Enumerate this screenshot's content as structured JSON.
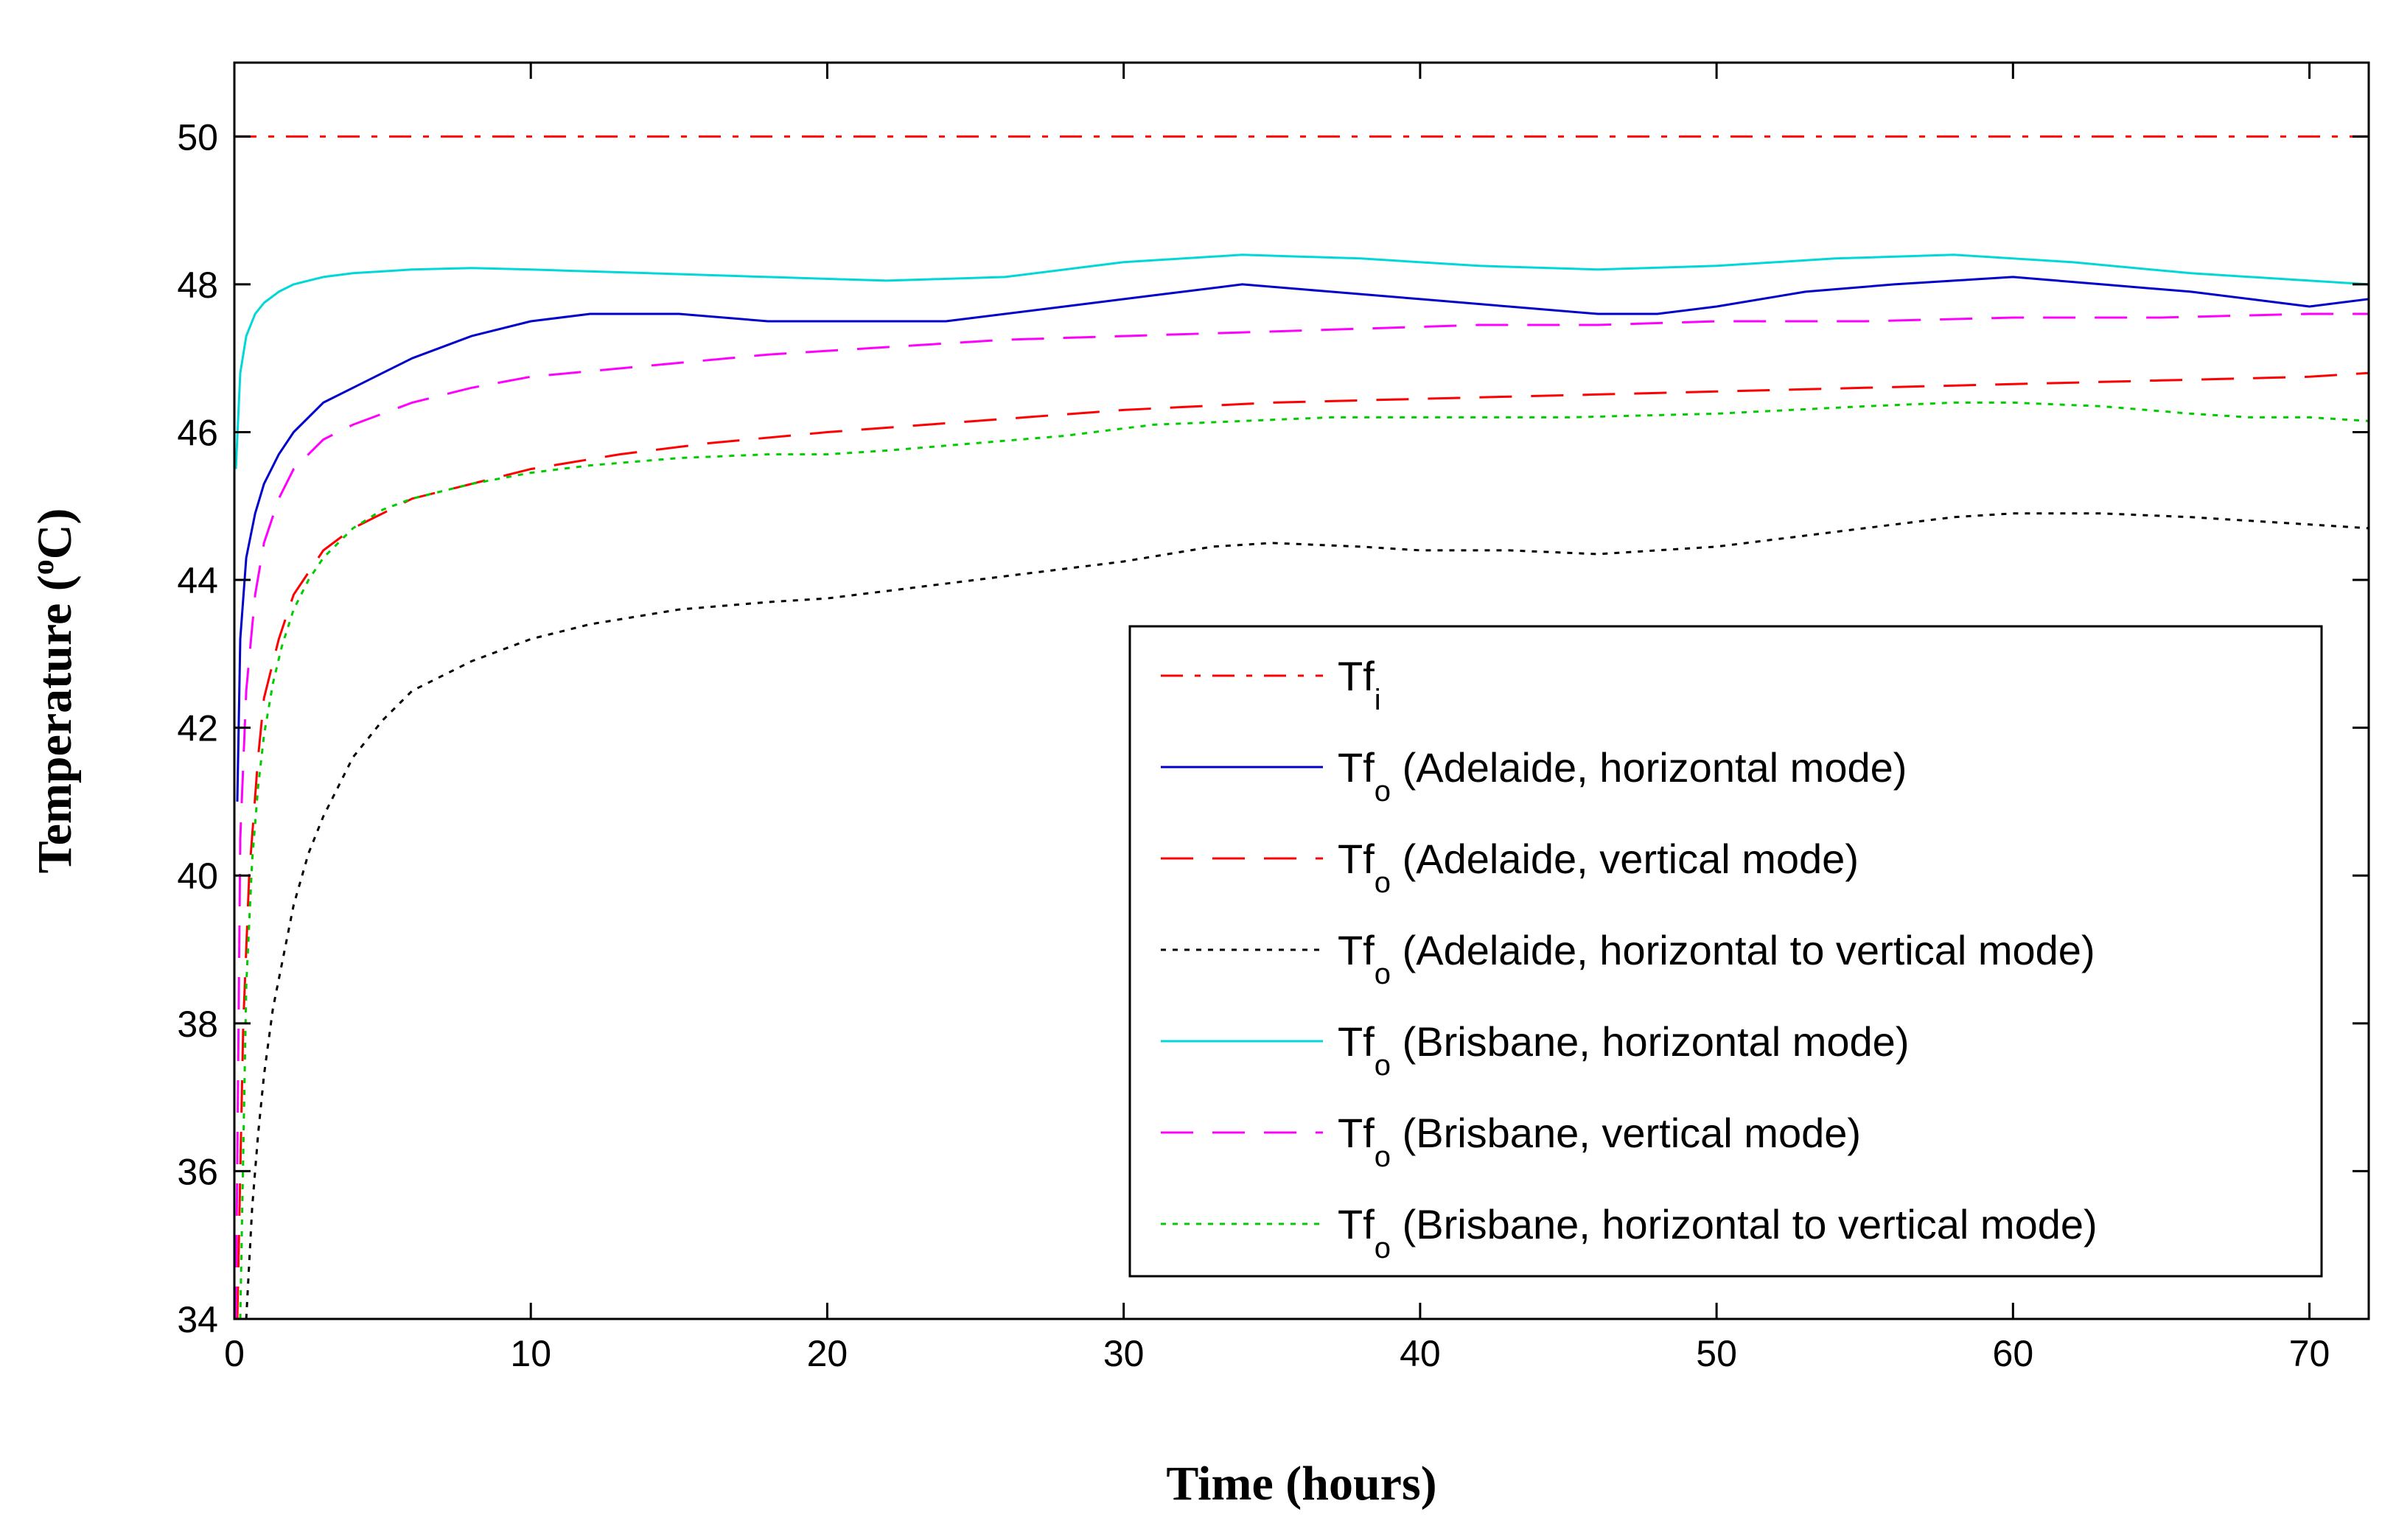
{
  "chart_data": {
    "type": "line",
    "title": "",
    "xlabel": "Time (hours)",
    "ylabel": "Temperature (°C)",
    "ylabel_parts": [
      "Temperature (",
      "o",
      "C)"
    ],
    "xlim": [
      0,
      72
    ],
    "ylim": [
      34,
      51
    ],
    "xticks": [
      0,
      10,
      20,
      30,
      40,
      50,
      60,
      70
    ],
    "yticks": [
      34,
      36,
      38,
      40,
      42,
      44,
      46,
      48,
      50
    ],
    "grid": false,
    "legend_position": "lower-right",
    "series": [
      {
        "name": "Tfi",
        "label_main": "Tf",
        "label_sub": "i",
        "label_rest": "",
        "color": "#ff0000",
        "style": "dashdot",
        "x": [
          0,
          72
        ],
        "y": [
          50,
          50
        ]
      },
      {
        "name": "Tfo (Adelaide, horizontal mode)",
        "label_main": "Tf",
        "label_sub": "o",
        "label_rest": " (Adelaide, horizontal mode)",
        "color": "#0000cc",
        "style": "solid",
        "x": [
          0.1,
          0.2,
          0.4,
          0.7,
          1,
          1.5,
          2,
          3,
          4,
          5,
          6,
          8,
          10,
          12,
          15,
          18,
          20,
          24,
          28,
          31,
          34,
          37,
          40,
          43,
          46,
          48,
          50,
          53,
          56,
          58,
          60,
          63,
          66,
          68,
          70,
          72
        ],
        "y": [
          41,
          43.2,
          44.3,
          44.9,
          45.3,
          45.7,
          46,
          46.4,
          46.6,
          46.8,
          47,
          47.3,
          47.5,
          47.6,
          47.6,
          47.5,
          47.5,
          47.5,
          47.7,
          47.85,
          48,
          47.9,
          47.8,
          47.7,
          47.6,
          47.6,
          47.7,
          47.9,
          48,
          48.05,
          48.1,
          48,
          47.9,
          47.8,
          47.7,
          47.8
        ]
      },
      {
        "name": "Tfo (Adelaide, vertical mode)",
        "label_main": "Tf",
        "label_sub": "o",
        "label_rest": " (Adelaide, vertical mode)",
        "color": "#ff0000",
        "style": "dashed",
        "x": [
          0.1,
          0.3,
          0.5,
          0.8,
          1,
          1.5,
          2,
          3,
          4,
          6,
          8,
          10,
          13,
          16,
          20,
          25,
          30,
          35,
          40,
          45,
          50,
          55,
          60,
          65,
          70,
          72
        ],
        "y": [
          34,
          38,
          40,
          41.6,
          42.4,
          43.2,
          43.8,
          44.4,
          44.7,
          45.1,
          45.3,
          45.5,
          45.7,
          45.85,
          46,
          46.15,
          46.3,
          46.4,
          46.45,
          46.5,
          46.55,
          46.6,
          46.65,
          46.7,
          46.75,
          46.8
        ]
      },
      {
        "name": "Tfo (Adelaide, horizontal to vertical mode)",
        "label_main": "Tf",
        "label_sub": "o",
        "label_rest": " (Adelaide, horizontal to vertical mode)",
        "color": "#000000",
        "style": "dotted",
        "x": [
          0.4,
          0.6,
          0.8,
          1,
          1.3,
          1.7,
          2,
          2.5,
          3,
          4,
          5,
          6,
          8,
          10,
          12,
          15,
          18,
          20,
          23,
          26,
          30,
          33,
          35,
          38,
          40,
          43,
          46,
          48,
          50,
          53,
          56,
          58,
          60,
          63,
          66,
          68,
          70,
          72
        ],
        "y": [
          34,
          35.5,
          36.5,
          37.3,
          38.2,
          39,
          39.6,
          40.3,
          40.8,
          41.6,
          42.1,
          42.5,
          42.9,
          43.2,
          43.4,
          43.6,
          43.7,
          43.75,
          43.9,
          44.05,
          44.25,
          44.45,
          44.5,
          44.45,
          44.4,
          44.4,
          44.35,
          44.4,
          44.45,
          44.6,
          44.75,
          44.85,
          44.9,
          44.9,
          44.85,
          44.8,
          44.75,
          44.7
        ]
      },
      {
        "name": "Tfo (Brisbane, horizontal mode)",
        "label_main": "Tf",
        "label_sub": "o",
        "label_rest": " (Brisbane, horizontal mode)",
        "color": "#00d8d8",
        "style": "solid",
        "x": [
          0.05,
          0.2,
          0.4,
          0.7,
          1,
          1.5,
          2,
          3,
          4,
          6,
          8,
          10,
          14,
          18,
          22,
          26,
          30,
          34,
          38,
          42,
          46,
          50,
          54,
          58,
          62,
          66,
          70,
          72
        ],
        "y": [
          45.5,
          46.8,
          47.3,
          47.6,
          47.75,
          47.9,
          48,
          48.1,
          48.15,
          48.2,
          48.22,
          48.2,
          48.15,
          48.1,
          48.05,
          48.1,
          48.3,
          48.4,
          48.35,
          48.25,
          48.2,
          48.25,
          48.35,
          48.4,
          48.3,
          48.15,
          48.05,
          48
        ]
      },
      {
        "name": "Tfo (Brisbane, vertical mode)",
        "label_main": "Tf",
        "label_sub": "o",
        "label_rest": " (Brisbane, vertical mode)",
        "color": "#ff00ff",
        "style": "dashed",
        "x": [
          0.05,
          0.2,
          0.4,
          0.7,
          1,
          1.5,
          2,
          3,
          4,
          6,
          8,
          10,
          14,
          18,
          22,
          26,
          30,
          34,
          38,
          42,
          46,
          50,
          55,
          60,
          65,
          70,
          72
        ],
        "y": [
          34,
          40.5,
          42.5,
          43.8,
          44.5,
          45.1,
          45.5,
          45.9,
          46.1,
          46.4,
          46.6,
          46.75,
          46.9,
          47.05,
          47.15,
          47.25,
          47.3,
          47.35,
          47.4,
          47.45,
          47.45,
          47.5,
          47.5,
          47.55,
          47.55,
          47.6,
          47.6
        ]
      },
      {
        "name": "Tfo (Brisbane, horizontal to vertical mode)",
        "label_main": "Tf",
        "label_sub": "o",
        "label_rest": " (Brisbane, horizontal to vertical mode)",
        "color": "#00cc00",
        "style": "dotted",
        "x": [
          0.2,
          0.4,
          0.6,
          0.8,
          1,
          1.3,
          1.6,
          2,
          2.5,
          3,
          4,
          5,
          6,
          8,
          10,
          12,
          15,
          18,
          20,
          22,
          25,
          28,
          31,
          34,
          37,
          40,
          45,
          50,
          55,
          58,
          60,
          63,
          66,
          68,
          70,
          72
        ],
        "y": [
          34,
          38.5,
          40.2,
          41.2,
          41.9,
          42.6,
          43.1,
          43.6,
          44,
          44.3,
          44.7,
          44.95,
          45.1,
          45.3,
          45.45,
          45.55,
          45.65,
          45.7,
          45.7,
          45.75,
          45.85,
          45.95,
          46.1,
          46.15,
          46.2,
          46.2,
          46.2,
          46.25,
          46.35,
          46.4,
          46.4,
          46.35,
          46.25,
          46.2,
          46.2,
          46.15
        ]
      }
    ]
  }
}
